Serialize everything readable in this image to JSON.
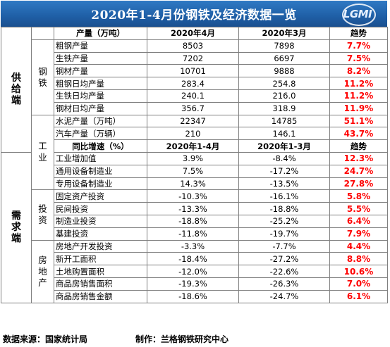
{
  "title": "2020年1-4月份钢铁及经济数据一览",
  "logo_text": "LGMI",
  "categories": {
    "supply": "供给端",
    "demand": "需求端"
  },
  "groups": {
    "steel": "钢铁",
    "industry": "工业",
    "investment": "投资",
    "real_estate": "房地产"
  },
  "header1": {
    "col1": "产量（万吨）",
    "col2": "2020年4月",
    "col3": "2020年3月",
    "col4": "趋势"
  },
  "header2": {
    "col1": "同比增速（%）",
    "col2": "2020年1-4月",
    "col3": "2020年1-3月",
    "col4": "趋势"
  },
  "steel_rows": [
    {
      "name": "粗钢产量",
      "v1": "8503",
      "v2": "7898",
      "trend": "7.7%"
    },
    {
      "name": "生铁产量",
      "v1": "7202",
      "v2": "6697",
      "trend": "7.5%"
    },
    {
      "name": "钢材产量",
      "v1": "10701",
      "v2": "9888",
      "trend": "8.2%"
    },
    {
      "name": "粗钢日均产量",
      "v1": "283.4",
      "v2": "254.8",
      "trend": "11.2%"
    },
    {
      "name": "生铁日均产量",
      "v1": "240.1",
      "v2": "216.0",
      "trend": "11.2%"
    },
    {
      "name": "钢材日均产量",
      "v1": "356.7",
      "v2": "318.9",
      "trend": "11.9%"
    }
  ],
  "industry_output_rows": [
    {
      "name": "水泥产量（万吨）",
      "v1": "22347",
      "v2": "14785",
      "trend": "51.1%"
    },
    {
      "name": "汽车产量（万辆）",
      "v1": "210",
      "v2": "146.1",
      "trend": "43.7%"
    }
  ],
  "industry_growth_rows": [
    {
      "name": "工业增加值",
      "v1": "3.9%",
      "v2": "-8.4%",
      "trend": "12.3%"
    },
    {
      "name": "通用设备制造业",
      "v1": "7.5%",
      "v2": "-17.2%",
      "trend": "24.7%"
    },
    {
      "name": "专用设备制造业",
      "v1": "14.3%",
      "v2": "-13.5%",
      "trend": "27.8%"
    }
  ],
  "investment_rows": [
    {
      "name": "固定资产投资",
      "v1": "-10.3%",
      "v2": "-16.1%",
      "trend": "5.8%"
    },
    {
      "name": "民间投资",
      "v1": "-13.3%",
      "v2": "-18.8%",
      "trend": "5.5%"
    },
    {
      "name": "制造业投资",
      "v1": "-18.8%",
      "v2": "-25.2%",
      "trend": "6.4%"
    },
    {
      "name": "基建投资",
      "v1": "-11.8%",
      "v2": "-19.7%",
      "trend": "7.9%"
    }
  ],
  "real_estate_rows": [
    {
      "name": "房地产开发投资",
      "v1": "-3.3%",
      "v2": "-7.7%",
      "trend": "4.4%"
    },
    {
      "name": "新开工面积",
      "v1": "-18.4%",
      "v2": "-27.2%",
      "trend": "8.8%"
    },
    {
      "name": "土地购置面积",
      "v1": "-12.0%",
      "v2": "-22.6%",
      "trend": "10.6%"
    },
    {
      "name": "商品房销售面积",
      "v1": "-19.3%",
      "v2": "-26.3%",
      "trend": "7.0%"
    },
    {
      "name": "商品房销售金额",
      "v1": "-18.6%",
      "v2": "-24.7%",
      "trend": "6.1%"
    }
  ],
  "footer": {
    "source": "数据来源：国家统计局",
    "producer": "制作：兰格钢铁研究中心"
  }
}
